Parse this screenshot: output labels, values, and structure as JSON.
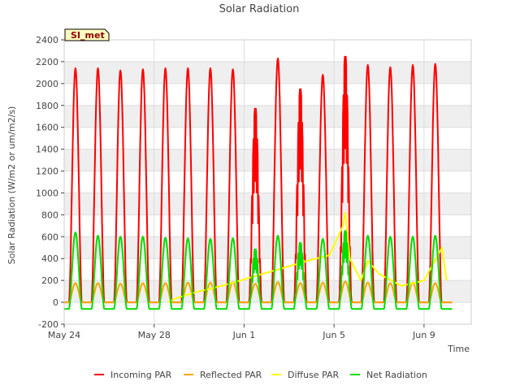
{
  "chart_data": {
    "type": "line",
    "title": "Solar Radiation",
    "xlabel": "Time",
    "ylabel": "Solar Radiation (W/m2 or um/m2/s)",
    "station_label": "SI_met",
    "x_unit": "days since May 24",
    "xlim": [
      0,
      18.1
    ],
    "ylim": [
      -200,
      2400
    ],
    "yticks": [
      -200,
      0,
      200,
      400,
      600,
      800,
      1000,
      1200,
      1400,
      1600,
      1800,
      2000,
      2200,
      2400
    ],
    "xticks": [
      {
        "value": 0,
        "label": "May 24"
      },
      {
        "value": 4,
        "label": "May 28"
      },
      {
        "value": 8,
        "label": "Jun 1"
      },
      {
        "value": 12,
        "label": "Jun 5"
      },
      {
        "value": 16,
        "label": "Jun 9"
      }
    ],
    "day_range": [
      0,
      17
    ],
    "series": [
      {
        "name": "Incoming PAR",
        "color": "#ff0000",
        "daily_peak": [
          2140,
          2140,
          2120,
          2130,
          2140,
          2140,
          2140,
          2130,
          1790,
          2230,
          1970,
          2080,
          2270,
          2170,
          2150,
          2170,
          2180,
          0
        ],
        "night": 0
      },
      {
        "name": "Reflected PAR",
        "color": "#ffa500",
        "daily_peak": [
          175,
          175,
          170,
          175,
          175,
          180,
          180,
          185,
          170,
          185,
          175,
          180,
          190,
          180,
          175,
          180,
          175,
          0
        ],
        "night": 0
      },
      {
        "name": "Diffuse PAR",
        "color": "#ffff00",
        "points": [
          [
            4.6,
            0
          ],
          [
            5.0,
            40
          ],
          [
            6.0,
            100
          ],
          [
            7.0,
            150
          ],
          [
            8.0,
            210
          ],
          [
            9.0,
            270
          ],
          [
            10.0,
            330
          ],
          [
            11.0,
            390
          ],
          [
            11.8,
            430
          ],
          [
            12.4,
            700
          ],
          [
            12.5,
            820
          ],
          [
            12.7,
            400
          ],
          [
            13.2,
            200
          ],
          [
            13.5,
            380
          ],
          [
            14.0,
            260
          ],
          [
            15.0,
            150
          ],
          [
            16.0,
            200
          ],
          [
            16.8,
            500
          ],
          [
            17.0,
            200
          ]
        ]
      },
      {
        "name": "Net Radiation",
        "color": "#00dd00",
        "daily_peak": [
          640,
          610,
          600,
          600,
          590,
          585,
          580,
          585,
          490,
          610,
          550,
          580,
          660,
          610,
          600,
          600,
          610,
          0
        ],
        "night": -60
      }
    ]
  }
}
